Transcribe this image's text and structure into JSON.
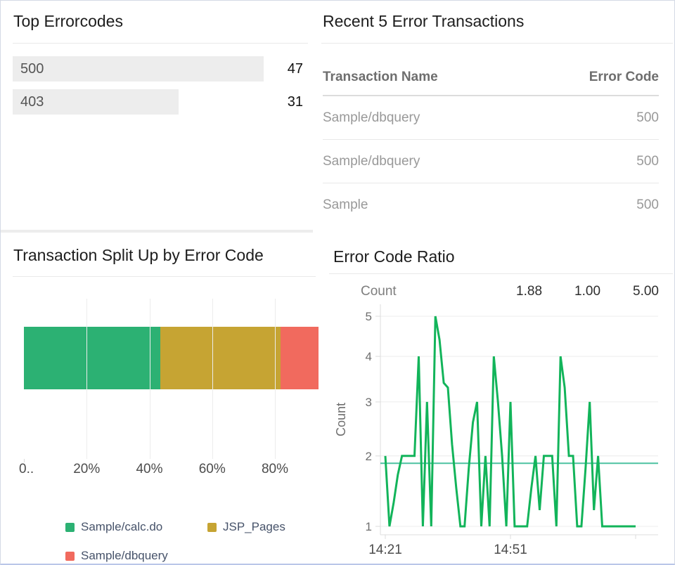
{
  "colors": {
    "bar_fill": "#ededed",
    "green": "#2cb173",
    "gold": "#c6a433",
    "red": "#f16a5e",
    "line_green": "#12b45a",
    "avg_teal": "#4cc2a0",
    "grid": "#ececec",
    "axis_line": "#dcdcdc",
    "tick_text": "#6e6e6e",
    "time_text": "#4c4c4c"
  },
  "chart_data": [
    {
      "type": "bar",
      "orientation": "horizontal",
      "title": "Top Errorcodes",
      "categories": [
        "500",
        "403"
      ],
      "values": [
        47,
        31
      ],
      "xlim": [
        0,
        50
      ]
    },
    {
      "type": "table",
      "title": "Recent 5 Error Transactions",
      "columns": [
        "Transaction Name",
        "Error Code"
      ],
      "rows": [
        [
          "Sample/dbquery",
          "500"
        ],
        [
          "Sample/dbquery",
          "500"
        ],
        [
          "Sample",
          "500"
        ]
      ]
    },
    {
      "type": "bar",
      "subtype": "stacked-horizontal-percent",
      "title": "Transaction Split Up by Error Code",
      "series": [
        {
          "name": "Sample/calc.do",
          "value_pct": 43.5,
          "color": "#2cb173"
        },
        {
          "name": "JSP_Pages",
          "value_pct": 38.3,
          "color": "#c6a433"
        },
        {
          "name": "Sample/dbquery",
          "value_pct": 12.2,
          "color": "#f16a5e"
        }
      ],
      "xlim": [
        0,
        100
      ],
      "xticks": [
        {
          "pct": 0,
          "label": "0.."
        },
        {
          "pct": 20,
          "label": "20%"
        },
        {
          "pct": 40,
          "label": "40%"
        },
        {
          "pct": 60,
          "label": "60%"
        },
        {
          "pct": 80,
          "label": "80%"
        }
      ],
      "legend_position": "bottom"
    },
    {
      "type": "line",
      "title": "Error Code Ratio",
      "ylabel": "Count",
      "header_stats": {
        "label": "Count",
        "avg": "1.88",
        "min": "1.00",
        "max": "5.00"
      },
      "ylim": [
        1,
        5
      ],
      "yticks": [
        5,
        4,
        3,
        2,
        1
      ],
      "y_scale": "sqrt",
      "average": 1.88,
      "minutes_per_point": 1,
      "x_ticks": [
        {
          "minute": 0,
          "label": "14:21"
        },
        {
          "minute": 30,
          "label": "14:51"
        },
        {
          "minute": 60,
          "label": ""
        }
      ],
      "values": [
        2,
        1,
        1.3,
        1.7,
        2,
        2,
        2,
        2,
        4,
        1,
        3,
        1,
        5,
        4.4,
        3.4,
        3.3,
        2.2,
        1.5,
        1,
        1,
        1.8,
        2.6,
        3,
        1,
        2,
        1,
        4,
        3,
        2,
        1,
        3,
        1,
        1,
        1,
        1,
        1.5,
        2,
        1.2,
        2,
        2,
        2,
        1,
        4,
        3.3,
        2,
        2,
        1,
        1,
        1.8,
        3,
        1.2,
        2,
        1,
        1,
        1,
        1,
        1,
        1,
        1,
        1,
        1
      ]
    }
  ]
}
